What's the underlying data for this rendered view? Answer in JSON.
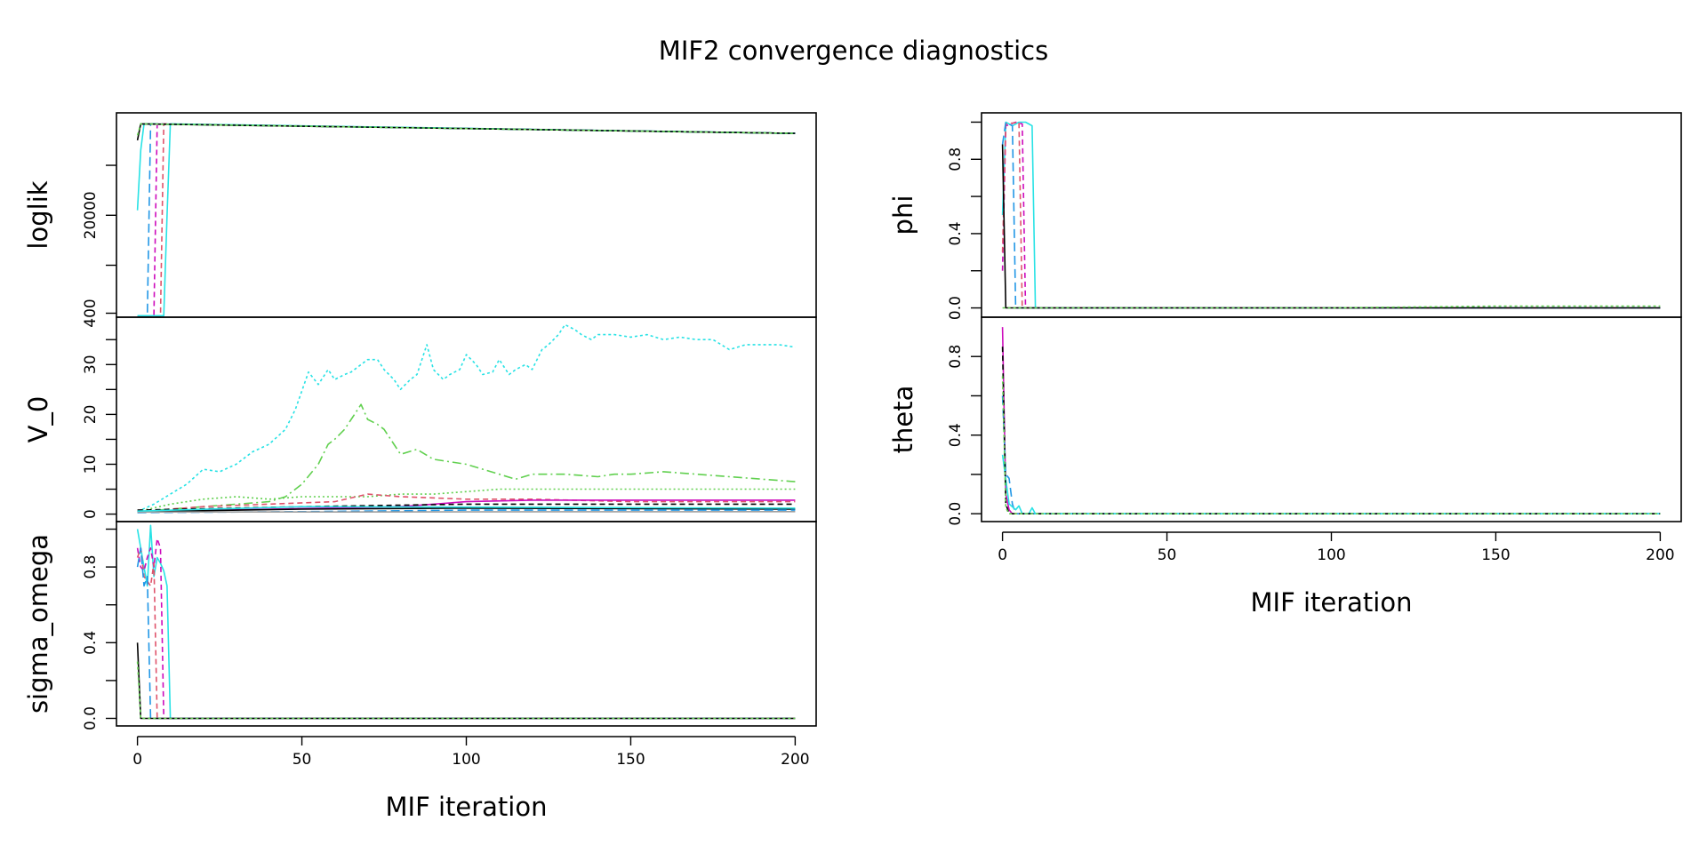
{
  "title": "MIF2 convergence diagnostics",
  "colors": {
    "black": "#000000",
    "red": "#df536b",
    "green": "#61d04f",
    "blue": "#2297e6",
    "cyan": "#28e2e5",
    "magenta": "#cd0bbc",
    "gold": "#f5c710",
    "gray": "#9e9e9e"
  },
  "chart_data": [
    {
      "type": "line",
      "panel": "loglik",
      "group": "left",
      "ylabel": "loglik",
      "xlabel": "",
      "xlim": [
        0,
        200
      ],
      "ylim": [
        -400,
        40500
      ],
      "yticks": [
        400,
        20000
      ],
      "yticks_minor": [
        10000,
        30000
      ],
      "ytick_labels": [
        "400",
        "20000"
      ],
      "series": [
        {
          "color": "#2297e6",
          "dash": "10,5",
          "x": [
            0,
            1,
            3,
            4,
            200
          ],
          "y": [
            -250,
            -200,
            -150,
            38300,
            36400
          ]
        },
        {
          "color": "#cd0bbc",
          "dash": "6,4",
          "x": [
            0,
            4,
            5,
            6,
            200
          ],
          "y": [
            -300,
            -300,
            -200,
            38300,
            36400
          ]
        },
        {
          "color": "#df536b",
          "dash": "6,4",
          "x": [
            0,
            6,
            7,
            8,
            200
          ],
          "y": [
            -300,
            -300,
            -200,
            38300,
            36400
          ]
        },
        {
          "color": "#28e2e5",
          "dash": "",
          "x": [
            0,
            1,
            2,
            200
          ],
          "y": [
            21000,
            33000,
            38300,
            36400
          ]
        },
        {
          "color": "#28e2e5",
          "dash": "",
          "x": [
            0,
            8,
            9,
            10,
            200
          ],
          "y": [
            -100,
            -100,
            20000,
            38300,
            36400
          ]
        },
        {
          "color": "#000000",
          "dash": "",
          "x": [
            0,
            1,
            200
          ],
          "y": [
            35000,
            38300,
            36400
          ]
        },
        {
          "color": "#61d04f",
          "dash": "3,3",
          "x": [
            0,
            1,
            200
          ],
          "y": [
            36000,
            38300,
            36400
          ]
        }
      ]
    },
    {
      "type": "line",
      "panel": "V_0",
      "group": "left",
      "ylabel": "V_0",
      "xlabel": "",
      "xlim": [
        0,
        200
      ],
      "ylim": [
        -1.5,
        39.5
      ],
      "yticks": [
        0,
        10,
        20,
        30
      ],
      "yticks_minor": [
        5,
        15,
        25,
        35
      ],
      "ytick_labels": [
        "0",
        "10",
        "20",
        "30"
      ],
      "series": [
        {
          "color": "#28e2e5",
          "dash": "3,3",
          "x": [
            0,
            5,
            10,
            15,
            20,
            25,
            30,
            35,
            40,
            45,
            48,
            52,
            55,
            58,
            60,
            63,
            65,
            68,
            70,
            73,
            75,
            78,
            80,
            83,
            85,
            88,
            90,
            93,
            95,
            98,
            100,
            103,
            105,
            108,
            110,
            113,
            115,
            118,
            120,
            123,
            125,
            128,
            130,
            133,
            135,
            138,
            140,
            145,
            150,
            155,
            160,
            165,
            170,
            175,
            180,
            185,
            190,
            195,
            200
          ],
          "y": [
            0.5,
            2,
            4,
            6,
            9,
            8.5,
            10,
            12.5,
            14,
            17,
            21,
            28.5,
            26,
            29,
            27,
            28,
            28.5,
            30,
            31,
            31,
            29,
            27,
            25,
            27,
            28,
            34,
            29,
            27,
            28,
            29,
            32,
            30,
            28,
            28.5,
            31,
            28,
            29,
            30,
            29,
            33,
            34,
            36,
            38,
            37,
            36,
            35,
            36,
            36,
            35.5,
            36,
            35,
            35.5,
            35,
            35,
            33,
            34,
            34,
            34,
            33.5
          ]
        },
        {
          "color": "#61d04f",
          "dash": "10,4,2,4",
          "x": [
            0,
            10,
            20,
            30,
            40,
            45,
            50,
            55,
            58,
            60,
            63,
            65,
            68,
            70,
            73,
            75,
            78,
            80,
            85,
            90,
            95,
            100,
            105,
            110,
            115,
            120,
            130,
            140,
            145,
            150,
            160,
            170,
            180,
            190,
            200
          ],
          "y": [
            0.5,
            1,
            1.5,
            2,
            2.5,
            3.5,
            6,
            10,
            14,
            15,
            17,
            19,
            22,
            19,
            18,
            17,
            14,
            12,
            13,
            11,
            10.5,
            10,
            9,
            8,
            7,
            8,
            8,
            7.5,
            8,
            8,
            8.5,
            8,
            7.5,
            7,
            6.5
          ]
        },
        {
          "color": "#61d04f",
          "dash": "2,3",
          "x": [
            0,
            10,
            20,
            30,
            40,
            50,
            60,
            70,
            80,
            90,
            100,
            110,
            120,
            140,
            160,
            180,
            200
          ],
          "y": [
            0.5,
            2,
            3,
            3.5,
            3,
            3.5,
            3.5,
            3.5,
            4,
            4,
            4.5,
            5,
            5,
            5,
            5,
            5,
            5
          ]
        },
        {
          "color": "#df536b",
          "dash": "6,4",
          "x": [
            0,
            20,
            40,
            60,
            70,
            80,
            100,
            120,
            150,
            200
          ],
          "y": [
            0.5,
            1.5,
            2,
            2.5,
            4,
            3.5,
            3,
            3,
            2.5,
            2.5
          ]
        },
        {
          "color": "#cd0bbc",
          "dash": "",
          "x": [
            0,
            40,
            80,
            100,
            120,
            160,
            200
          ],
          "y": [
            0.5,
            1,
            1.5,
            2.5,
            2.8,
            2.8,
            2.8
          ]
        },
        {
          "color": "#000000",
          "dash": "6,4",
          "x": [
            0,
            50,
            100,
            150,
            200
          ],
          "y": [
            0.8,
            1.5,
            2,
            2,
            2
          ]
        },
        {
          "color": "#000000",
          "dash": "",
          "x": [
            0,
            50,
            100,
            200
          ],
          "y": [
            0.5,
            1,
            1.2,
            1
          ]
        },
        {
          "color": "#2297e6",
          "dash": "10,5",
          "x": [
            0,
            50,
            100,
            200
          ],
          "y": [
            0.3,
            0.5,
            0.8,
            0.8
          ]
        },
        {
          "color": "#9e9e9e",
          "dash": "",
          "x": [
            0,
            200
          ],
          "y": [
            0.4,
            0.5
          ]
        },
        {
          "color": "#28e2e5",
          "dash": "",
          "x": [
            0,
            50,
            200
          ],
          "y": [
            0.6,
            1.5,
            1.2
          ]
        }
      ]
    },
    {
      "type": "line",
      "panel": "sigma_omega",
      "group": "left",
      "ylabel": "sigma_omega",
      "xlabel": "MIF iteration",
      "xlim": [
        0,
        200
      ],
      "ylim": [
        -0.04,
        1.04
      ],
      "yticks": [
        0,
        0.4,
        0.8
      ],
      "yticks_minor": [
        0.2,
        0.6,
        1.0
      ],
      "ytick_labels": [
        "0.0",
        "0.4",
        "0.8"
      ],
      "xticks": [
        0,
        50,
        100,
        150,
        200
      ],
      "xtick_labels": [
        "0",
        "50",
        "100",
        "150",
        "200"
      ],
      "series": [
        {
          "color": "#28e2e5",
          "dash": "",
          "x": [
            0,
            1,
            2,
            3,
            4,
            5,
            6,
            7,
            8,
            9,
            10,
            200
          ],
          "y": [
            1.0,
            0.9,
            0.8,
            0.7,
            1.02,
            0.75,
            0.85,
            0.82,
            0.78,
            0.7,
            0.0,
            0.0
          ]
        },
        {
          "color": "#cd0bbc",
          "dash": "6,4",
          "x": [
            0,
            1,
            2,
            3,
            4,
            5,
            6,
            7,
            8,
            200
          ],
          "y": [
            0.9,
            0.8,
            0.78,
            0.85,
            0.9,
            0.8,
            0.95,
            0.9,
            0.0,
            0.0
          ]
        },
        {
          "color": "#df536b",
          "dash": "6,4",
          "x": [
            0,
            1,
            2,
            4,
            5,
            6,
            200
          ],
          "y": [
            0.85,
            0.9,
            0.75,
            0.7,
            0.82,
            0.0,
            0.0
          ]
        },
        {
          "color": "#2297e6",
          "dash": "10,5",
          "x": [
            0,
            1,
            2,
            3,
            4,
            200
          ],
          "y": [
            0.8,
            0.9,
            0.7,
            0.75,
            0.0,
            0.0
          ]
        },
        {
          "color": "#000000",
          "dash": "",
          "x": [
            0,
            1,
            200
          ],
          "y": [
            0.4,
            0.0,
            0.0
          ]
        },
        {
          "color": "#61d04f",
          "dash": "3,3",
          "x": [
            0,
            1,
            200
          ],
          "y": [
            0.3,
            0.0,
            0.0
          ]
        }
      ]
    },
    {
      "type": "line",
      "panel": "phi",
      "group": "right",
      "ylabel": "phi",
      "xlabel": "",
      "xlim": [
        0,
        200
      ],
      "ylim": [
        -0.05,
        1.05
      ],
      "yticks": [
        0,
        0.4,
        0.8
      ],
      "yticks_minor": [
        0.2,
        0.6,
        1.0
      ],
      "ytick_labels": [
        "0.0",
        "0.4",
        "0.8"
      ],
      "series": [
        {
          "color": "#28e2e5",
          "dash": "",
          "x": [
            0,
            1,
            3,
            5,
            7,
            8,
            9,
            10,
            200
          ],
          "y": [
            0.5,
            1.0,
            0.98,
            1.0,
            1.0,
            0.99,
            0.98,
            0.0,
            0.0
          ]
        },
        {
          "color": "#cd0bbc",
          "dash": "6,4",
          "x": [
            0,
            1,
            4,
            6,
            7,
            8,
            200
          ],
          "y": [
            0.2,
            0.98,
            1.0,
            0.99,
            0.0,
            0.0,
            0.0
          ]
        },
        {
          "color": "#df536b",
          "dash": "6,4",
          "x": [
            0,
            1,
            5,
            6,
            200
          ],
          "y": [
            0.3,
            0.99,
            1.0,
            0.0,
            0.0
          ]
        },
        {
          "color": "#2297e6",
          "dash": "10,5",
          "x": [
            0,
            1,
            3,
            4,
            200
          ],
          "y": [
            0.88,
            1.0,
            0.98,
            0.0,
            0.0
          ]
        },
        {
          "color": "#000000",
          "dash": "",
          "x": [
            0,
            1,
            200
          ],
          "y": [
            0.88,
            0.0,
            0.0
          ]
        },
        {
          "color": "#61d04f",
          "dash": "3,3",
          "x": [
            0,
            100,
            150,
            200
          ],
          "y": [
            0.0,
            0.0,
            0.01,
            0.01
          ]
        }
      ]
    },
    {
      "type": "line",
      "panel": "theta",
      "group": "right",
      "ylabel": "theta",
      "xlabel": "MIF iteration",
      "xlim": [
        0,
        200
      ],
      "ylim": [
        -0.04,
        1.0
      ],
      "yticks": [
        0,
        0.4,
        0.8
      ],
      "yticks_minor": [
        0.2,
        0.6
      ],
      "ytick_labels": [
        "0.0",
        "0.4",
        "0.8"
      ],
      "xticks": [
        0,
        50,
        100,
        150,
        200
      ],
      "xtick_labels": [
        "0",
        "50",
        "100",
        "150",
        "200"
      ],
      "series": [
        {
          "color": "#cd0bbc",
          "dash": "",
          "x": [
            0,
            0.5,
            1,
            2,
            3,
            200
          ],
          "y": [
            0.95,
            0.5,
            0.1,
            0.02,
            0.0,
            0.0
          ]
        },
        {
          "color": "#2297e6",
          "dash": "10,5",
          "x": [
            0,
            1,
            2,
            3,
            4,
            200
          ],
          "y": [
            0.6,
            0.2,
            0.18,
            0.05,
            0.0,
            0.0
          ]
        },
        {
          "color": "#28e2e5",
          "dash": "",
          "x": [
            0,
            2,
            4,
            5,
            6,
            8,
            9,
            10,
            200
          ],
          "y": [
            0.3,
            0.05,
            0.02,
            0.04,
            0.0,
            0.0,
            0.03,
            0.0,
            0.0
          ]
        },
        {
          "color": "#000000",
          "dash": "6,4",
          "x": [
            0,
            1,
            2,
            200
          ],
          "y": [
            0.85,
            0.05,
            0.0,
            0.0
          ]
        },
        {
          "color": "#61d04f",
          "dash": "3,3",
          "x": [
            0,
            1,
            2,
            200
          ],
          "y": [
            0.7,
            0.03,
            0.0,
            0.0
          ]
        }
      ]
    }
  ]
}
